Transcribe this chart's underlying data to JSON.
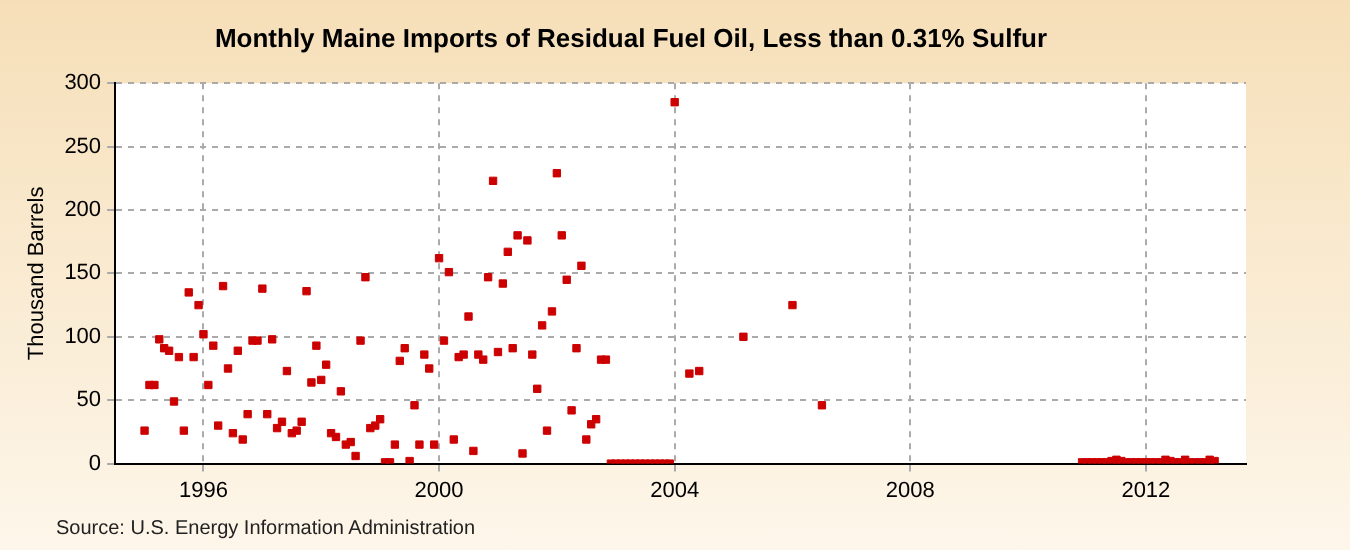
{
  "chart_data": {
    "type": "scatter",
    "title": "Monthly Maine Imports of Residual Fuel Oil, Less than 0.31% Sulfur",
    "ylabel": "Thousand Barrels",
    "annotations": [
      "Source: U.S. Energy Information Administration"
    ],
    "xlim": [
      1994.5,
      2013.7
    ],
    "xticks": [
      1996,
      2000,
      2004,
      2008,
      2012
    ],
    "ylim": [
      0,
      300
    ],
    "yticks": [
      0,
      50,
      100,
      150,
      200,
      250,
      300
    ],
    "grid": true,
    "legend": false,
    "marker": "square",
    "series": [
      {
        "color": "#cc0000",
        "x": [
          1995.0,
          1995.083,
          1995.167,
          1995.25,
          1995.333,
          1995.417,
          1995.5,
          1995.583,
          1995.667,
          1995.75,
          1995.833,
          1995.917,
          1996.0,
          1996.083,
          1996.167,
          1996.25,
          1996.333,
          1996.417,
          1996.5,
          1996.583,
          1996.667,
          1996.75,
          1996.833,
          1996.917,
          1997.0,
          1997.083,
          1997.167,
          1997.25,
          1997.333,
          1997.417,
          1997.5,
          1997.583,
          1997.667,
          1997.75,
          1997.833,
          1997.917,
          1998.0,
          1998.083,
          1998.167,
          1998.25,
          1998.333,
          1998.417,
          1998.5,
          1998.583,
          1998.667,
          1998.75,
          1998.833,
          1998.917,
          1999.0,
          1999.083,
          1999.167,
          1999.25,
          1999.333,
          1999.417,
          1999.5,
          1999.583,
          1999.667,
          1999.75,
          1999.833,
          1999.917,
          2000.0,
          2000.083,
          2000.167,
          2000.25,
          2000.333,
          2000.417,
          2000.5,
          2000.583,
          2000.667,
          2000.75,
          2000.833,
          2000.917,
          2001.0,
          2001.083,
          2001.167,
          2001.25,
          2001.333,
          2001.417,
          2001.5,
          2001.583,
          2001.667,
          2001.75,
          2001.833,
          2001.917,
          2002.0,
          2002.083,
          2002.167,
          2002.25,
          2002.333,
          2002.417,
          2002.5,
          2002.583,
          2002.667,
          2002.75,
          2002.833,
          2002.917,
          2003.0,
          2003.083,
          2003.167,
          2003.25,
          2003.333,
          2003.417,
          2003.5,
          2003.583,
          2003.667,
          2003.75,
          2003.833,
          2003.917,
          2004.0,
          2004.25,
          2004.417,
          2005.167,
          2006.0,
          2006.5,
          2010.917,
          2011.0,
          2011.083,
          2011.167,
          2011.25,
          2011.333,
          2011.417,
          2011.5,
          2011.583,
          2011.667,
          2011.75,
          2011.833,
          2011.917,
          2012.0,
          2012.083,
          2012.167,
          2012.25,
          2012.333,
          2012.417,
          2012.5,
          2012.583,
          2012.667,
          2012.75,
          2012.833,
          2012.917,
          2013.0,
          2013.083,
          2013.167
        ],
        "values": [
          26,
          62,
          62,
          98,
          91,
          89,
          49,
          84,
          26,
          135,
          84,
          125,
          102,
          62,
          93,
          30,
          140,
          75,
          24,
          89,
          19,
          39,
          97,
          97,
          138,
          39,
          98,
          28,
          33,
          73,
          24,
          26,
          33,
          136,
          64,
          93,
          66,
          78,
          24,
          21,
          57,
          15,
          17,
          6,
          97,
          147,
          28,
          30,
          35,
          1,
          1,
          15,
          81,
          91,
          2,
          46,
          15,
          86,
          75,
          15,
          162,
          97,
          151,
          19,
          84,
          86,
          116,
          10,
          86,
          82,
          147,
          223,
          88,
          142,
          167,
          91,
          180,
          8,
          176,
          86,
          59,
          109,
          26,
          120,
          229,
          180,
          145,
          42,
          91,
          156,
          19,
          31,
          35,
          82,
          82,
          0,
          0,
          0,
          0,
          0,
          0,
          0,
          0,
          0,
          0,
          0,
          0,
          0,
          285,
          71,
          73,
          100,
          125,
          46,
          1,
          1,
          1,
          1,
          1,
          1,
          2,
          3,
          2,
          1,
          1,
          1,
          1,
          1,
          1,
          1,
          1,
          3,
          2,
          1,
          1,
          3,
          1,
          1,
          1,
          1,
          3,
          2
        ]
      }
    ]
  }
}
